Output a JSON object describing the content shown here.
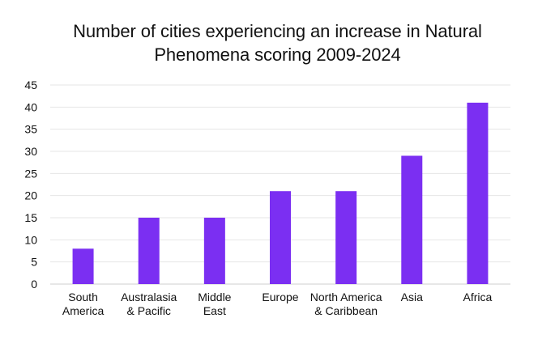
{
  "chart_data": {
    "type": "bar",
    "title_lines": [
      "Number of cities experiencing an increase in Natural",
      "Phenomena scoring 2009-2024"
    ],
    "categories": [
      [
        "South",
        "America"
      ],
      [
        "Australasia",
        "& Pacific"
      ],
      [
        "Middle",
        "East"
      ],
      [
        "Europe"
      ],
      [
        "North America",
        "& Caribbean"
      ],
      [
        "Asia"
      ],
      [
        "Africa"
      ]
    ],
    "values": [
      8,
      15,
      15,
      21,
      21,
      29,
      41
    ],
    "yticks": [
      "0",
      "5",
      "10",
      "15",
      "20",
      "25",
      "30",
      "35",
      "40",
      "45"
    ],
    "ylim": [
      0,
      45
    ],
    "xlabel": "",
    "ylabel": "",
    "grid": true,
    "legend": "none",
    "colors": {
      "bar": "#7b2ff2",
      "grid": "#e6e6e6",
      "axis": "#cfcfcf"
    }
  }
}
